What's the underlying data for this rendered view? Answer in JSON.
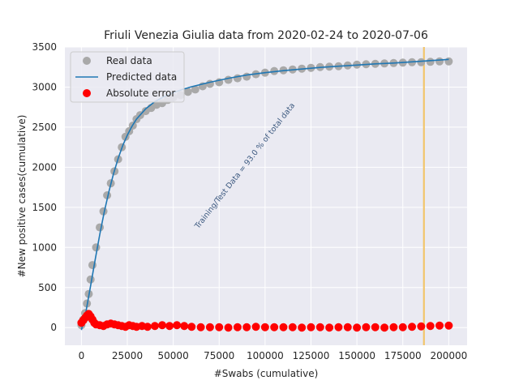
{
  "chart_data": {
    "type": "scatter",
    "title": "Friuli Venezia Giulia data  from 2020-02-24 to 2020-07-06",
    "xlabel": "#Swabs (cumulative)",
    "ylabel": "#New positive cases(cumulative)",
    "xlim": [
      -9000,
      210000
    ],
    "ylim": [
      -220,
      3500
    ],
    "x_ticks": [
      0,
      25000,
      50000,
      75000,
      100000,
      125000,
      150000,
      175000,
      200000
    ],
    "y_ticks": [
      0,
      500,
      1000,
      1500,
      2000,
      2500,
      3000,
      3500
    ],
    "grid": true,
    "legend_position": "top-left",
    "vline_x": 186500,
    "annotation": {
      "text": "Training/Test Data = 93.0 % of total data",
      "x": 90000,
      "y": 2000
    },
    "colors": {
      "background": "#eaeaf2",
      "grid": "#ffffff",
      "real": "#a9a9a9",
      "predicted": "#1f77b4",
      "error": "#ff0000",
      "vline": "#f2c56b"
    },
    "series": [
      {
        "name": "Real data",
        "kind": "scatter",
        "x": [
          0,
          1000,
          2000,
          3000,
          4000,
          5000,
          6000,
          8000,
          10000,
          12000,
          14000,
          16000,
          18000,
          20000,
          22000,
          24000,
          26000,
          28000,
          30000,
          32000,
          35000,
          38000,
          41000,
          44000,
          47000,
          50000,
          54000,
          58000,
          62000,
          66000,
          70000,
          75000,
          80000,
          85000,
          90000,
          95000,
          100000,
          105000,
          110000,
          115000,
          120000,
          125000,
          130000,
          135000,
          140000,
          145000,
          150000,
          155000,
          160000,
          165000,
          170000,
          175000,
          180000,
          185000,
          190000,
          195000,
          200000
        ],
        "y": [
          30,
          100,
          180,
          300,
          420,
          600,
          780,
          1000,
          1250,
          1450,
          1650,
          1800,
          1950,
          2100,
          2250,
          2380,
          2450,
          2520,
          2600,
          2650,
          2700,
          2740,
          2780,
          2800,
          2840,
          2870,
          2900,
          2940,
          2970,
          3010,
          3040,
          3060,
          3090,
          3110,
          3130,
          3160,
          3180,
          3200,
          3210,
          3220,
          3230,
          3240,
          3250,
          3255,
          3260,
          3270,
          3280,
          3285,
          3290,
          3295,
          3300,
          3305,
          3310,
          3310,
          3315,
          3320,
          3320
        ]
      },
      {
        "name": "Predicted data",
        "kind": "line",
        "x": [
          0,
          2500,
          5000,
          7500,
          10000,
          12500,
          15000,
          17500,
          20000,
          22500,
          25000,
          27500,
          30000,
          35000,
          40000,
          45000,
          50000,
          55000,
          60000,
          70000,
          80000,
          90000,
          100000,
          110000,
          120000,
          130000,
          140000,
          150000,
          160000,
          170000,
          180000,
          190000,
          200000
        ],
        "y": [
          -30,
          200,
          520,
          850,
          1160,
          1450,
          1700,
          1920,
          2110,
          2270,
          2400,
          2510,
          2600,
          2730,
          2820,
          2880,
          2930,
          2970,
          3005,
          3060,
          3110,
          3150,
          3180,
          3205,
          3225,
          3245,
          3260,
          3275,
          3290,
          3300,
          3315,
          3330,
          3345
        ]
      },
      {
        "name": "Absolute error",
        "kind": "scatter",
        "x": [
          0,
          1000,
          2000,
          3000,
          4000,
          5000,
          6000,
          7000,
          8000,
          10000,
          12000,
          14000,
          16000,
          18000,
          20000,
          22000,
          24000,
          26000,
          28000,
          30000,
          33000,
          36000,
          40000,
          44000,
          48000,
          52000,
          56000,
          60000,
          65000,
          70000,
          75000,
          80000,
          85000,
          90000,
          95000,
          100000,
          105000,
          110000,
          115000,
          120000,
          125000,
          130000,
          135000,
          140000,
          145000,
          150000,
          155000,
          160000,
          165000,
          170000,
          175000,
          180000,
          185000,
          190000,
          195000,
          200000
        ],
        "y": [
          60,
          90,
          120,
          150,
          170,
          140,
          100,
          60,
          40,
          30,
          20,
          40,
          50,
          40,
          30,
          20,
          10,
          30,
          20,
          10,
          20,
          10,
          20,
          30,
          20,
          30,
          20,
          10,
          5,
          5,
          5,
          0,
          5,
          5,
          10,
          5,
          5,
          5,
          5,
          0,
          5,
          5,
          0,
          5,
          5,
          0,
          5,
          5,
          0,
          5,
          5,
          10,
          15,
          20,
          25,
          25
        ]
      }
    ]
  }
}
